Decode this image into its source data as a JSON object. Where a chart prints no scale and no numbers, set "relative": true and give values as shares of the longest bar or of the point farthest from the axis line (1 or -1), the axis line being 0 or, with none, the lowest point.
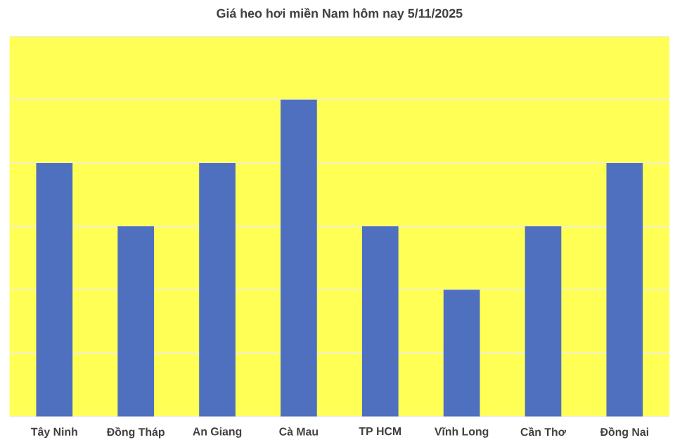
{
  "chart_data": {
    "type": "bar",
    "title": "Giá heo hơi miền Nam hôm nay 5/11/2025",
    "categories": [
      "Tây Ninh",
      "Đồng Tháp",
      "An Giang",
      "Cà Mau",
      "TP HCM",
      "Vĩnh Long",
      "Cần Thơ",
      "Đồng Nai"
    ],
    "values": [
      0.8,
      0.6,
      0.8,
      1,
      0.6,
      0.4,
      0.6,
      0.8
    ],
    "color": "#4f6fbf",
    "relative": true,
    "grid": "y"
  }
}
